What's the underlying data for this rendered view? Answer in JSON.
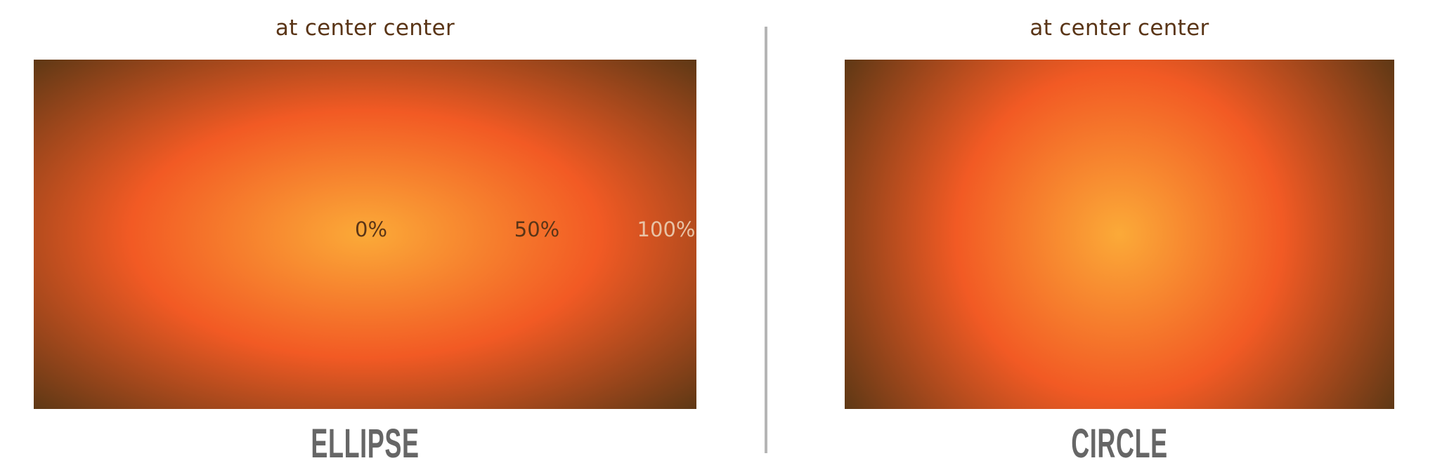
{
  "panels": [
    {
      "caption": "at center center",
      "title": "ELLIPSE",
      "shape": "ellipse",
      "stops": [
        {
          "label": "0%",
          "color": "#5a3517"
        },
        {
          "label": "50%",
          "color": "#5a3517"
        },
        {
          "label": "100%",
          "color": "#e8c3a6"
        }
      ]
    },
    {
      "caption": "at center center",
      "title": "CIRCLE",
      "shape": "circle"
    }
  ],
  "gradient_colors": {
    "start": "#fbaa38",
    "middle": "#f25a24",
    "end": "#5e3815"
  }
}
